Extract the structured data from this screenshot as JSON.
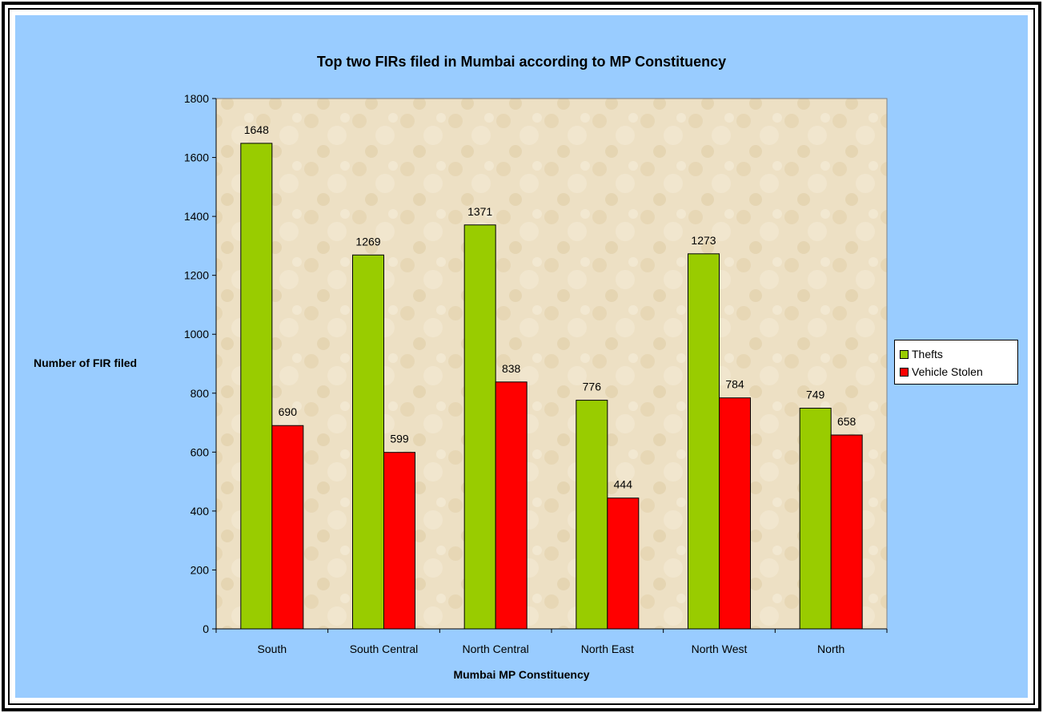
{
  "chart_data": {
    "type": "bar",
    "title": "Top two FIRs filed in Mumbai according to MP Constituency",
    "xlabel": "Mumbai MP Constituency",
    "ylabel": "Number of FIR filed",
    "ylim": [
      0,
      1800
    ],
    "yticks": [
      0,
      200,
      400,
      600,
      800,
      1000,
      1200,
      1400,
      1600,
      1800
    ],
    "categories": [
      "South",
      "South Central",
      "North Central",
      "North East",
      "North West",
      "North"
    ],
    "series": [
      {
        "name": "Thefts",
        "color": "#99cc00",
        "values": [
          1648,
          1269,
          1371,
          776,
          1273,
          749
        ]
      },
      {
        "name": "Vehicle Stolen",
        "color": "#ff0000",
        "values": [
          690,
          599,
          838,
          444,
          784,
          658
        ]
      }
    ],
    "legend_position": "right",
    "grid": false,
    "plot_background": "textured-beige",
    "chart_background": "#99ccff"
  }
}
